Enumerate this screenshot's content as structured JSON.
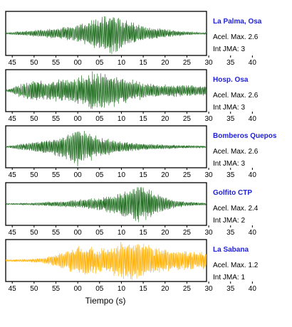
{
  "chart_data": {
    "type": "line",
    "xlabel": "Tiempo (s)",
    "x_tick_labels": [
      "45",
      "50",
      "55",
      "00",
      "05",
      "10",
      "15",
      "20",
      "25",
      "30",
      "35",
      "40"
    ],
    "grid": false,
    "colors": {
      "green": "#1e6b1e",
      "orange": "#ffb000",
      "name": "#1f1fd6"
    },
    "series": [
      {
        "name": "La Palma, Osa",
        "acel_label": "Acel. Max. 2.6",
        "int_label": "Int JMA: 3",
        "color": "#1e6b1e",
        "envelope": [
          [
            -1,
            0.04
          ],
          [
            3,
            0.12
          ],
          [
            6,
            0.17
          ],
          [
            9,
            0.22
          ],
          [
            13,
            0.32
          ],
          [
            16,
            0.45
          ],
          [
            18,
            0.65
          ],
          [
            20,
            0.78
          ],
          [
            22,
            0.95
          ],
          [
            23,
            1.0
          ],
          [
            25,
            0.7
          ],
          [
            28,
            0.48
          ],
          [
            31,
            0.3
          ],
          [
            34,
            0.25
          ],
          [
            37,
            0.15
          ],
          [
            40,
            0.08
          ],
          [
            43,
            0.05
          ]
        ]
      },
      {
        "name": "Hosp. Osa",
        "acel_label": "Acel. Max. 2.6",
        "int_label": "Int JMA: 3",
        "color": "#1e6b1e",
        "envelope": [
          [
            -1,
            0.05
          ],
          [
            2,
            0.35
          ],
          [
            5,
            0.5
          ],
          [
            8,
            0.55
          ],
          [
            11,
            0.55
          ],
          [
            14,
            0.65
          ],
          [
            17,
            0.85
          ],
          [
            19,
            1.0
          ],
          [
            21,
            0.9
          ],
          [
            24,
            0.75
          ],
          [
            27,
            0.55
          ],
          [
            30,
            0.4
          ],
          [
            34,
            0.3
          ],
          [
            38,
            0.3
          ],
          [
            42,
            0.28
          ],
          [
            44,
            0.25
          ]
        ]
      },
      {
        "name": "Bomberos Quepos",
        "acel_label": "Acel. Max. 2.6",
        "int_label": "Int JMA: 3",
        "color": "#1e6b1e",
        "envelope": [
          [
            -1,
            0.04
          ],
          [
            3,
            0.18
          ],
          [
            6,
            0.3
          ],
          [
            9,
            0.4
          ],
          [
            12,
            0.55
          ],
          [
            14,
            0.85
          ],
          [
            15,
            1.0
          ],
          [
            17,
            0.75
          ],
          [
            20,
            0.5
          ],
          [
            24,
            0.3
          ],
          [
            28,
            0.2
          ],
          [
            32,
            0.14
          ],
          [
            36,
            0.1
          ],
          [
            40,
            0.07
          ],
          [
            44,
            0.05
          ]
        ]
      },
      {
        "name": "Golfito CTP",
        "acel_label": "Acel. Max. 2.4",
        "int_label": "Int JMA: 2",
        "color": "#1e6b1e",
        "envelope": [
          [
            -1,
            0.03
          ],
          [
            4,
            0.05
          ],
          [
            8,
            0.1
          ],
          [
            12,
            0.15
          ],
          [
            16,
            0.22
          ],
          [
            20,
            0.3
          ],
          [
            24,
            0.5
          ],
          [
            27,
            0.75
          ],
          [
            29,
            1.0
          ],
          [
            31,
            0.8
          ],
          [
            34,
            0.4
          ],
          [
            37,
            0.2
          ],
          [
            40,
            0.1
          ],
          [
            44,
            0.06
          ]
        ]
      },
      {
        "name": "La Sabana",
        "acel_label": "Acel. Max. 1.2",
        "int_label": "Int JMA: 1",
        "color": "#ffb000",
        "envelope": [
          [
            -1,
            0.05
          ],
          [
            3,
            0.07
          ],
          [
            7,
            0.12
          ],
          [
            10,
            0.3
          ],
          [
            13,
            0.55
          ],
          [
            16,
            0.7
          ],
          [
            19,
            0.65
          ],
          [
            22,
            0.6
          ],
          [
            24,
            0.85
          ],
          [
            27,
            0.95
          ],
          [
            29,
            1.0
          ],
          [
            32,
            0.7
          ],
          [
            35,
            0.55
          ],
          [
            38,
            0.5
          ],
          [
            41,
            0.45
          ],
          [
            44,
            0.42
          ]
        ]
      }
    ]
  }
}
